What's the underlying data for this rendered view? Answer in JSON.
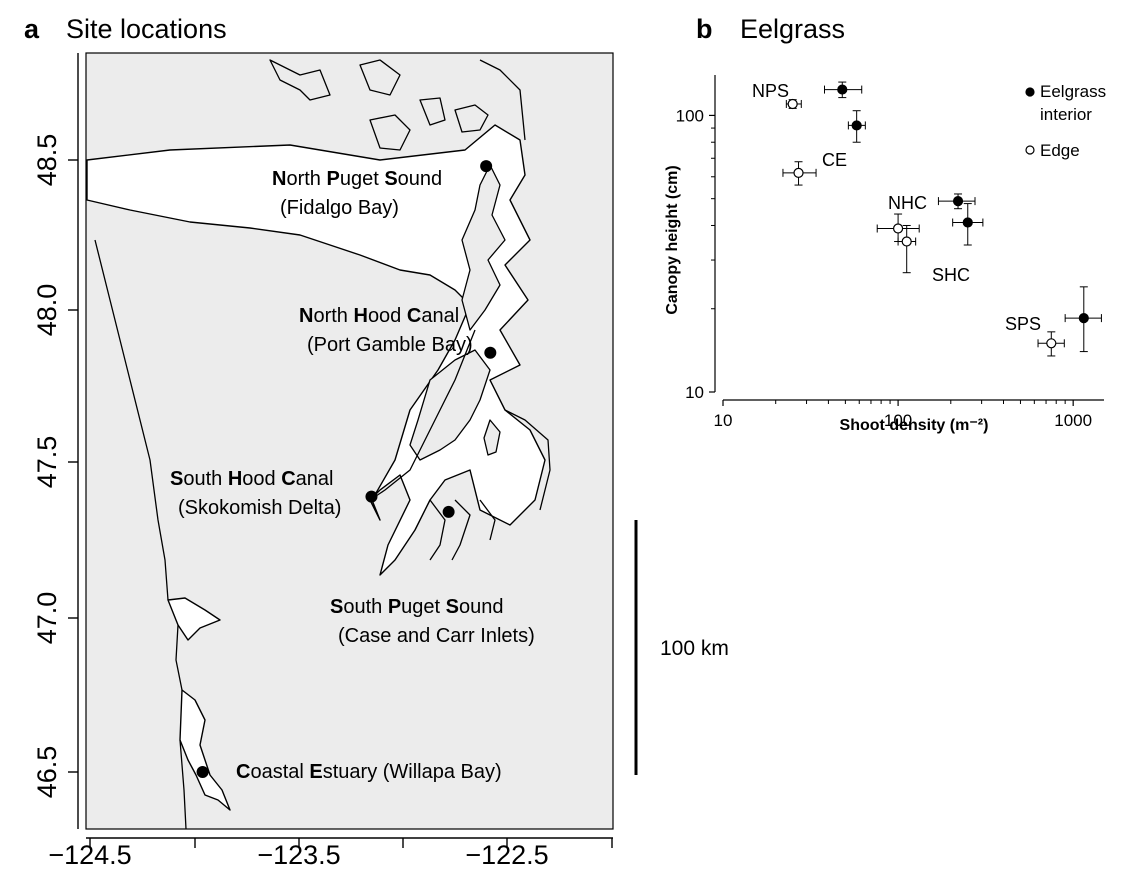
{
  "panel_a": {
    "letter": "a",
    "title": "Site locations",
    "x_ticks": [
      "−124.5",
      "−123.5",
      "−122.5"
    ],
    "y_ticks": [
      "48.5",
      "48.0",
      "47.5",
      "47.0",
      "46.5"
    ],
    "scale_bar_label": "100 km",
    "sites": [
      {
        "name_parts": [
          [
            "N",
            "orth "
          ],
          [
            "P",
            "uget "
          ],
          [
            "S",
            "ound"
          ]
        ],
        "location": "(Fidalgo Bay)",
        "lon": -122.6,
        "lat": 48.48
      },
      {
        "name_parts": [
          [
            "N",
            "orth "
          ],
          [
            "H",
            "ood "
          ],
          [
            "C",
            "anal"
          ]
        ],
        "location": "(Port Gamble Bay)",
        "lon": -122.58,
        "lat": 47.87
      },
      {
        "name_parts": [
          [
            "S",
            "outh "
          ],
          [
            "H",
            "ood "
          ],
          [
            "C",
            "anal"
          ]
        ],
        "location": "(Skokomish Delta)",
        "lon": -123.15,
        "lat": 47.4
      },
      {
        "name_parts": [
          [
            "S",
            "outh "
          ],
          [
            "P",
            "uget "
          ],
          [
            "S",
            "ound"
          ]
        ],
        "location": "(Case and Carr Inlets)",
        "lon": -122.78,
        "lat": 47.35
      },
      {
        "name_parts": [
          [
            "C",
            "oastal "
          ],
          [
            "E",
            "stuary"
          ]
        ],
        "location": "(Willapa Bay)",
        "lon": -123.96,
        "lat": 46.5
      }
    ]
  },
  "panel_b": {
    "letter": "b",
    "title": "Eelgrass",
    "legend": [
      {
        "label": "Eelgrass interior",
        "fill": "#000000"
      },
      {
        "label": "Edge",
        "fill": "#ffffff"
      }
    ]
  },
  "chart_data": [
    {
      "type": "scatter",
      "title": "Eelgrass",
      "xlabel": "Shoot density (m⁻²)",
      "ylabel": "Canopy height (cm)",
      "xscale": "log",
      "yscale": "log",
      "xlim": [
        10,
        1500
      ],
      "ylim": [
        10,
        140
      ],
      "x_ticks": [
        10,
        100,
        1000
      ],
      "y_ticks": [
        10,
        100
      ],
      "legend_position": "top-right",
      "series": [
        {
          "name": "Eelgrass interior",
          "fill": "#000000",
          "points": [
            {
              "site": "NPS",
              "x": 48,
              "y": 124,
              "x_err": [
                38,
                62
              ],
              "y_err": [
                116,
                132
              ]
            },
            {
              "site": "CE",
              "x": 58,
              "y": 92,
              "x_err": [
                52,
                65
              ],
              "y_err": [
                80,
                104
              ]
            },
            {
              "site": "NHC",
              "x": 220,
              "y": 49,
              "x_err": [
                170,
                275
              ],
              "y_err": [
                46,
                52
              ]
            },
            {
              "site": "SHC",
              "x": 250,
              "y": 41,
              "x_err": [
                205,
                305
              ],
              "y_err": [
                34,
                48
              ]
            },
            {
              "site": "SPS",
              "x": 1150,
              "y": 18.5,
              "x_err": [
                900,
                1450
              ],
              "y_err": [
                14,
                24
              ]
            }
          ]
        },
        {
          "name": "Edge",
          "fill": "#ffffff",
          "points": [
            {
              "site": "NPS",
              "x": 25,
              "y": 110,
              "x_err": [
                23,
                28
              ],
              "y_err": [
                106,
                114
              ]
            },
            {
              "site": "CE",
              "x": 27,
              "y": 62,
              "x_err": [
                22,
                34
              ],
              "y_err": [
                56,
                68
              ]
            },
            {
              "site": "NHC",
              "x": 100,
              "y": 39,
              "x_err": [
                76,
                132
              ],
              "y_err": [
                35,
                44
              ]
            },
            {
              "site": "SHC",
              "x": 112,
              "y": 35,
              "x_err": [
                100,
                126
              ],
              "y_err": [
                27,
                40
              ]
            },
            {
              "site": "SPS",
              "x": 750,
              "y": 15,
              "x_err": [
                630,
                890
              ],
              "y_err": [
                13.5,
                16.5
              ]
            }
          ]
        }
      ],
      "site_labels": [
        "NPS",
        "CE",
        "NHC",
        "SHC",
        "SPS"
      ]
    }
  ]
}
